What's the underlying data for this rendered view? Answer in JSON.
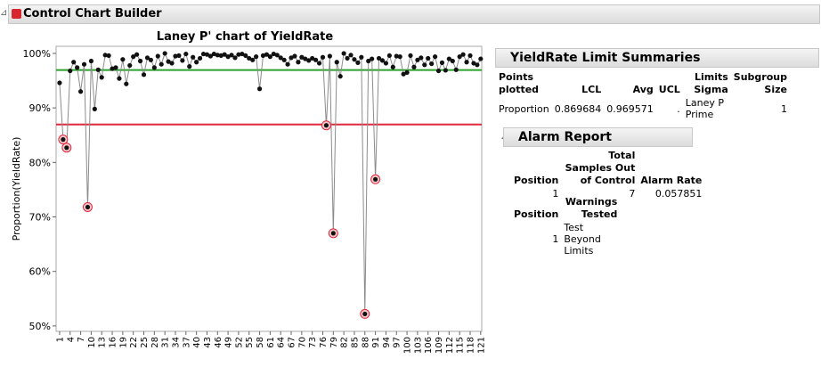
{
  "window": {
    "title": "Control Chart Builder"
  },
  "chart_data": {
    "type": "line",
    "title": "Laney P' chart of YieldRate",
    "y_label": "Proportion(YieldRate)",
    "x": [
      1,
      2,
      3,
      4,
      5,
      6,
      7,
      8,
      9,
      10,
      11,
      12,
      13,
      14,
      15,
      16,
      17,
      18,
      19,
      20,
      21,
      22,
      23,
      24,
      25,
      26,
      27,
      28,
      29,
      30,
      31,
      32,
      33,
      34,
      35,
      36,
      37,
      38,
      39,
      40,
      41,
      42,
      43,
      44,
      45,
      46,
      47,
      48,
      49,
      50,
      51,
      52,
      53,
      54,
      55,
      56,
      57,
      58,
      59,
      60,
      61,
      62,
      63,
      64,
      65,
      66,
      67,
      68,
      69,
      70,
      71,
      72,
      73,
      74,
      75,
      76,
      77,
      78,
      79,
      80,
      81,
      82,
      83,
      84,
      85,
      86,
      87,
      88,
      89,
      90,
      91,
      92,
      93,
      94,
      95,
      96,
      97,
      98,
      99,
      100,
      101,
      102,
      103,
      104,
      105,
      106,
      107,
      108,
      109,
      110,
      111,
      112,
      113,
      114,
      115,
      116,
      117,
      118,
      119,
      120,
      121
    ],
    "values": [
      94.6,
      84.2,
      82.7,
      96.8,
      98.4,
      97.4,
      93.0,
      98.0,
      71.8,
      98.6,
      89.8,
      97.0,
      95.6,
      99.7,
      99.6,
      97.2,
      97.4,
      95.4,
      98.9,
      94.4,
      97.8,
      99.4,
      99.8,
      98.6,
      96.1,
      99.2,
      98.8,
      97.4,
      99.5,
      98.0,
      100.0,
      98.5,
      98.2,
      99.5,
      99.6,
      98.7,
      99.9,
      97.6,
      99.3,
      98.4,
      99.1,
      99.9,
      99.8,
      99.5,
      99.9,
      99.7,
      99.6,
      99.8,
      99.4,
      99.7,
      99.2,
      99.8,
      99.9,
      99.6,
      99.1,
      98.8,
      99.4,
      93.5,
      99.6,
      99.8,
      99.4,
      99.9,
      99.7,
      99.2,
      98.8,
      98.0,
      99.2,
      99.5,
      98.4,
      99.3,
      99.0,
      98.7,
      99.1,
      98.8,
      98.2,
      99.3,
      86.8,
      99.5,
      67.0,
      98.4,
      95.8,
      100.0,
      99.1,
      99.7,
      98.9,
      98.3,
      99.3,
      52.2,
      98.6,
      99.0,
      76.9,
      99.1,
      98.7,
      98.2,
      99.6,
      97.5,
      99.5,
      99.4,
      96.2,
      96.5,
      99.6,
      97.5,
      98.8,
      99.2,
      97.9,
      99.1,
      98.1,
      99.4,
      96.8,
      98.3,
      96.9,
      99.0,
      98.6,
      97.0,
      99.4,
      99.8,
      98.4,
      99.6,
      98.2,
      97.9,
      99.0
    ],
    "center_line": 96.9571,
    "lcl": 86.9684,
    "line_color": "#8c8c8c",
    "marker_color": "#111111",
    "center_color": "#2ca02c",
    "lcl_color": "#e0283c",
    "alarm_color": "#e0283c",
    "xlim": [
      0,
      121.3
    ],
    "ylim": [
      49,
      101.3
    ],
    "xticks": [
      1,
      4,
      7,
      10,
      13,
      16,
      19,
      22,
      25,
      28,
      31,
      34,
      37,
      40,
      43,
      46,
      49,
      52,
      55,
      58,
      61,
      64,
      67,
      70,
      73,
      76,
      79,
      82,
      85,
      88,
      91,
      94,
      97,
      100,
      103,
      106,
      109,
      112,
      115,
      118,
      121
    ],
    "yticks": [
      {
        "value": 50,
        "label": "50%"
      },
      {
        "value": 60,
        "label": "60%"
      },
      {
        "value": 70,
        "label": "70%"
      },
      {
        "value": 80,
        "label": "80%"
      },
      {
        "value": 90,
        "label": "90%"
      },
      {
        "value": 100,
        "label": "100%"
      }
    ],
    "grid": false
  },
  "limit_summaries": {
    "title": "YieldRate Limit Summaries",
    "headers": [
      "Points plotted",
      "LCL",
      "Avg",
      "UCL",
      "Limits Sigma",
      "Subgroup Size"
    ],
    "rows": [
      [
        "Proportion",
        "0.869684",
        "0.969571",
        ".",
        "Laney P Prime",
        "1"
      ]
    ]
  },
  "alarm_report": {
    "title": "Alarm Report",
    "headers": [
      "Position",
      "Total Samples Out of Control",
      "Alarm Rate"
    ],
    "rows": [
      [
        "1",
        "7",
        "0.057851"
      ]
    ],
    "warnings_headers": [
      "Position",
      "Warnings Tested"
    ],
    "warnings_rows": [
      [
        "1",
        "Test Beyond Limits"
      ]
    ]
  }
}
